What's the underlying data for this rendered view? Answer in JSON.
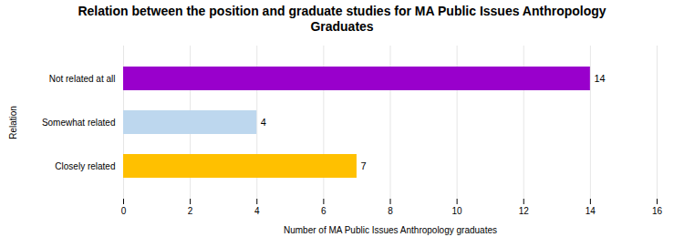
{
  "chart_data": {
    "type": "bar",
    "orientation": "horizontal",
    "title": "Relation between the position and graduate studies for MA Public Issues Anthropology\nGraduates",
    "categories": [
      "Closely related",
      "Somewhat related",
      "Not related at all"
    ],
    "values": [
      7,
      4,
      14
    ],
    "colors": [
      "#ffc000",
      "#bdd7ee",
      "#9900cc"
    ],
    "xlabel": "Number of MA Public Issues Anthropology graduates",
    "ylabel": "Relation",
    "xlim": [
      0,
      16
    ],
    "xticks": [
      0,
      2,
      4,
      6,
      8,
      10,
      12,
      14,
      16
    ],
    "grid": true,
    "data_labels": true
  }
}
